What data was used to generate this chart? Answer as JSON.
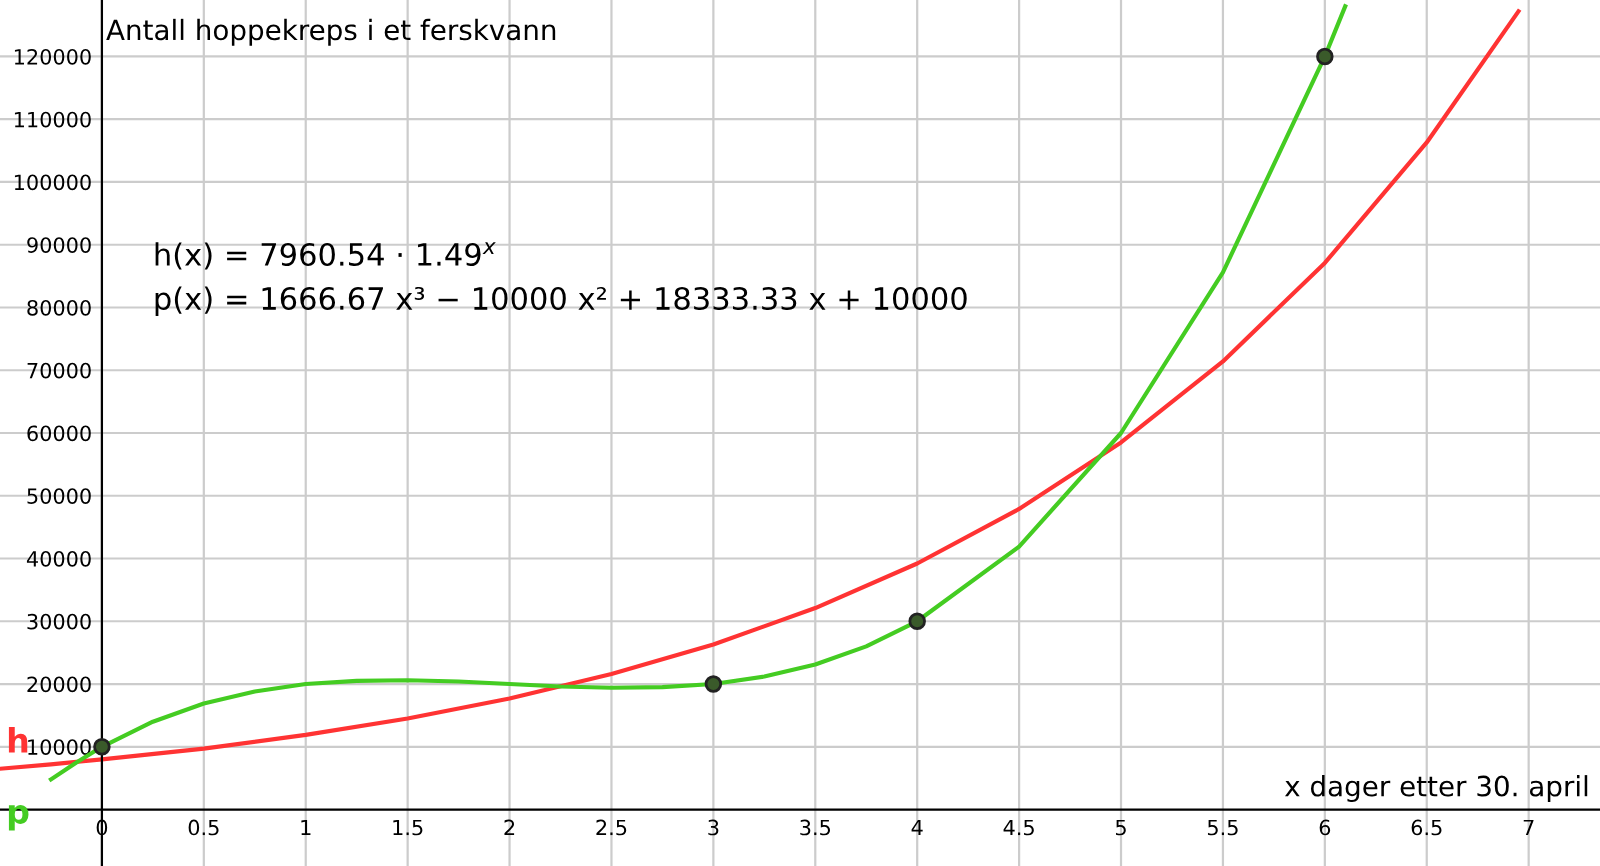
{
  "chart_data": {
    "type": "line",
    "xlabel": "x dager etter 30. april",
    "ylabel": "Antall hoppekreps i et ferskvann",
    "xlim": [
      -0.5,
      7.35
    ],
    "ylim": [
      -9000,
      129000
    ],
    "xticks": [
      0,
      0.5,
      1,
      1.5,
      2,
      2.5,
      3,
      3.5,
      4,
      4.5,
      5,
      5.5,
      6,
      6.5,
      7
    ],
    "yticks": [
      10000,
      20000,
      30000,
      40000,
      50000,
      60000,
      70000,
      80000,
      90000,
      100000,
      110000,
      120000
    ],
    "grid": true,
    "legend": false,
    "series": [
      {
        "name": "h",
        "color": "#ff3333",
        "x": [
          -0.5,
          -0.25,
          0,
          0.5,
          1,
          1.5,
          2,
          2.5,
          3,
          3.5,
          4,
          4.5,
          5,
          5.5,
          6,
          6.5,
          6.95
        ],
        "values": [
          6500,
          7200,
          8000,
          9700,
          11900,
          14500,
          17700,
          21600,
          26300,
          32100,
          39200,
          47900,
          58500,
          71400,
          87100,
          106300,
          127200
        ]
      },
      {
        "name": "p",
        "color": "#44cc22",
        "x": [
          -0.25,
          -0.125,
          0,
          0.25,
          0.5,
          0.75,
          1,
          1.25,
          1.5,
          1.75,
          2,
          2.25,
          2.5,
          2.75,
          3,
          3.25,
          3.5,
          3.75,
          4,
          4.5,
          5,
          5.5,
          6,
          6.1
        ],
        "values": [
          4800,
          7500,
          10000,
          14000,
          16900,
          18800,
          20000,
          20500,
          20600,
          20400,
          20000,
          19600,
          19400,
          19500,
          20000,
          21200,
          23100,
          26000,
          30000,
          41900,
          60000,
          85600,
          120000,
          128000
        ]
      },
      {
        "type": "scatter",
        "color": "#3a5a2a",
        "marker": "circle",
        "x": [
          0,
          3,
          4,
          6
        ],
        "values": [
          10000,
          20000,
          30000,
          120000
        ]
      }
    ],
    "annotations": [
      "h(x) = 7960.54 · 1.49$^{x}$",
      "p(x) = 1666.67 x³ − 10000 x² + 18333.33 x + 10000"
    ]
  }
}
